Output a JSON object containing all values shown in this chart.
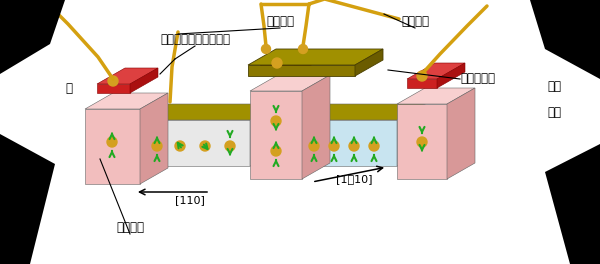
{
  "bg_color": "#ffffff",
  "labels": {
    "semiconductor_2deg": "半導体二次元電子ガス",
    "output_electrode": "出力電極",
    "input_electrode": "入力電極",
    "gate_electrode": "ゲート電極",
    "ferromagnet": "強磁性体",
    "source_partial": "極",
    "drain_partial": "ドレ",
    "electron_partial": "電子",
    "dir110": "[110]",
    "dir1b10": "[1͐10]"
  },
  "pdx": 28,
  "pdy": -16,
  "colors": {
    "gold_dark": "#6b5c00",
    "gold_mid": "#8a7800",
    "gold_top": "#a09000",
    "gold_front": "#b8a020",
    "pink_front": "#f2bebe",
    "pink_side": "#d89898",
    "pink_top": "#f8d0d0",
    "ch1_front": "#e8e8e8",
    "ch1_side": "#d0d0d0",
    "ch2_front": "#c8e4f0",
    "ch2_side": "#a8c8dc",
    "red_front": "#cc2020",
    "red_side": "#aa1010",
    "red_top": "#dd4040",
    "wire": "#d4a010",
    "green_arrow": "#22aa22",
    "gold_ball": "#d4a020",
    "black": "#000000",
    "white": "#ffffff"
  }
}
